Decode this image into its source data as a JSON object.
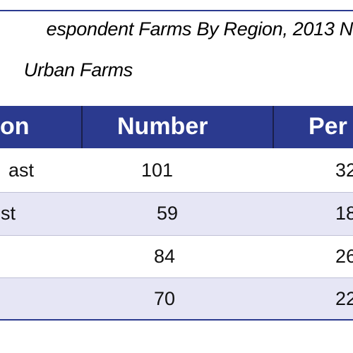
{
  "table": {
    "title": "espondent Farms By Region, 2013 N",
    "subtitle": "Urban Farms",
    "header": {
      "region": "on",
      "number": "Number",
      "percent": "Per"
    },
    "rows": [
      {
        "region": "ast",
        "number": "101",
        "percent": "32"
      },
      {
        "region": "st",
        "number": "59",
        "percent": "18"
      },
      {
        "region": "",
        "number": "84",
        "percent": "26"
      },
      {
        "region": "",
        "number": "70",
        "percent": "22"
      }
    ]
  },
  "colors": {
    "header_bg": "#2b3a8f",
    "row_shade": "#e6e6f5",
    "rule": "#2b3a8f"
  }
}
